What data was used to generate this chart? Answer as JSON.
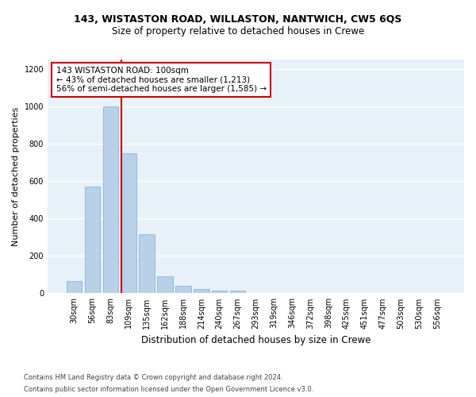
{
  "title": "143, WISTASTON ROAD, WILLASTON, NANTWICH, CW5 6QS",
  "subtitle": "Size of property relative to detached houses in Crewe",
  "xlabel": "Distribution of detached houses by size in Crewe",
  "ylabel": "Number of detached properties",
  "bar_labels": [
    "30sqm",
    "56sqm",
    "83sqm",
    "109sqm",
    "135sqm",
    "162sqm",
    "188sqm",
    "214sqm",
    "240sqm",
    "267sqm",
    "293sqm",
    "319sqm",
    "346sqm",
    "372sqm",
    "398sqm",
    "425sqm",
    "451sqm",
    "477sqm",
    "503sqm",
    "530sqm",
    "556sqm"
  ],
  "bar_values": [
    65,
    570,
    1000,
    750,
    315,
    90,
    40,
    25,
    15,
    15,
    0,
    0,
    0,
    0,
    0,
    0,
    0,
    0,
    0,
    0,
    0
  ],
  "bar_color": "#b8d0e8",
  "bar_edge_color": "#7aaed4",
  "background_color": "#e8f0f8",
  "grid_color": "#ffffff",
  "ylim": [
    0,
    1250
  ],
  "yticks": [
    0,
    200,
    400,
    600,
    800,
    1000,
    1200
  ],
  "vline_color": "#cc0000",
  "annotation_line1": "143 WISTASTON ROAD: 100sqm",
  "annotation_line2": "← 43% of detached houses are smaller (1,213)",
  "annotation_line3": "56% of semi-detached houses are larger (1,585) →",
  "annotation_box_color": "#cc0000",
  "footer_line1": "Contains HM Land Registry data © Crown copyright and database right 2024.",
  "footer_line2": "Contains public sector information licensed under the Open Government Licence v3.0.",
  "title_fontsize": 9,
  "subtitle_fontsize": 8.5,
  "ylabel_fontsize": 8,
  "xlabel_fontsize": 8.5,
  "tick_fontsize": 7,
  "annotation_fontsize": 7.5,
  "footer_fontsize": 6
}
